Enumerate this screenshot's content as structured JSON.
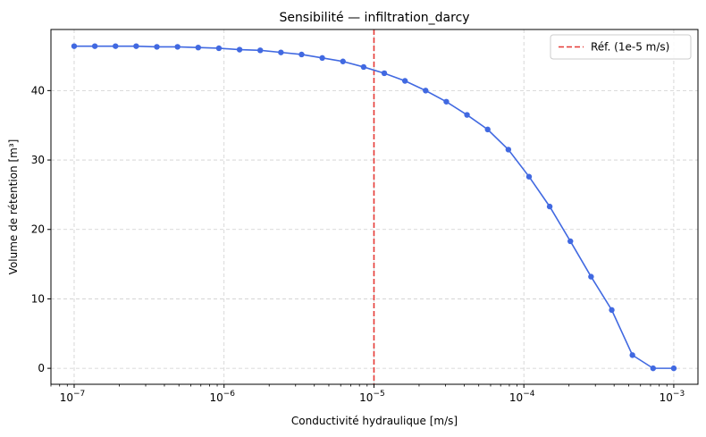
{
  "chart_data": {
    "type": "line",
    "title": "Sensibilité — infiltration_darcy",
    "xlabel": "Conductivité hydraulique [m/s]",
    "ylabel": "Volume de rétention [m³]",
    "xscale": "log",
    "xlim": [
      7e-08,
      0.00145
    ],
    "ylim": [
      -2.3,
      48.8
    ],
    "grid": true,
    "legend_position": "top-right",
    "x_ticks": [
      {
        "value": 1e-07,
        "mantissa": "10",
        "exponent": "−7"
      },
      {
        "value": 1e-06,
        "mantissa": "10",
        "exponent": "−6"
      },
      {
        "value": 1e-05,
        "mantissa": "10",
        "exponent": "−5"
      },
      {
        "value": 0.0001,
        "mantissa": "10",
        "exponent": "−4"
      },
      {
        "value": 0.001,
        "mantissa": "10",
        "exponent": "−3"
      }
    ],
    "y_ticks": [
      0,
      10,
      20,
      30,
      40
    ],
    "series": [
      {
        "color": "#4169e1",
        "x": [
          1e-07,
          1.374e-07,
          1.887e-07,
          2.593e-07,
          3.562e-07,
          4.894e-07,
          6.723e-07,
          9.237e-07,
          1.269e-06,
          1.743e-06,
          2.395e-06,
          3.29e-06,
          4.52e-06,
          6.21e-06,
          8.532e-06,
          1.172e-05,
          1.61e-05,
          2.212e-05,
          3.039e-05,
          4.175e-05,
          5.736e-05,
          7.88e-05,
          0.0001083,
          0.0001487,
          0.0002043,
          0.0002807,
          0.0003857,
          0.0005298,
          0.0007279,
          0.001
        ],
        "y": [
          46.4,
          46.4,
          46.4,
          46.4,
          46.3,
          46.3,
          46.2,
          46.1,
          45.9,
          45.8,
          45.5,
          45.2,
          44.7,
          44.2,
          43.4,
          42.5,
          41.4,
          40.0,
          38.4,
          36.5,
          34.4,
          31.5,
          27.6,
          23.3,
          18.3,
          13.2,
          8.4,
          1.9,
          0.0,
          0.0
        ]
      }
    ],
    "reference_line": {
      "x": 1e-05,
      "color": "#e53935",
      "label": "Réf. (1e-5 m/s)"
    }
  }
}
